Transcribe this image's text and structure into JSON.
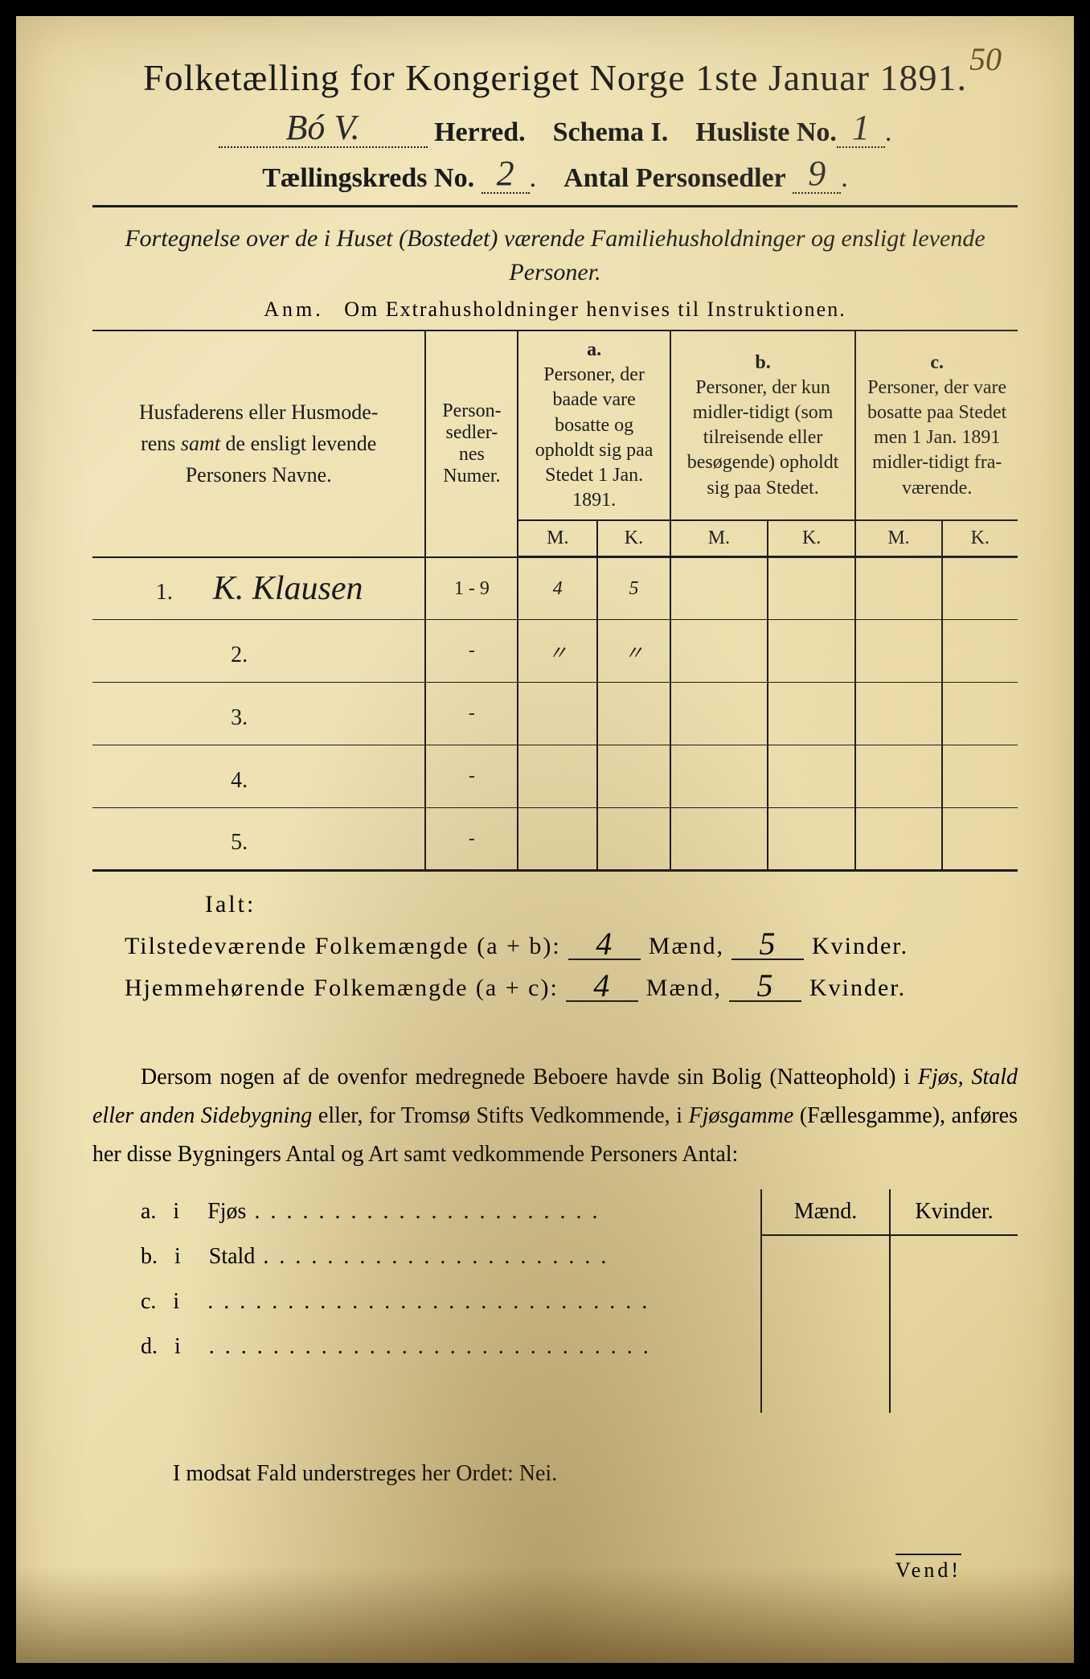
{
  "page_number_corner": "50",
  "title": "Folketælling for Kongeriget Norge 1ste Januar 1891.",
  "header": {
    "herred_value": "Bó V.",
    "herred_label": "Herred.",
    "schema_label": "Schema I.",
    "husliste_label": "Husliste No.",
    "husliste_value": "1",
    "tallingskreds_label": "Tællingskreds No.",
    "tallingskreds_value": "2",
    "antal_label": "Antal Personsedler",
    "antal_value": "9"
  },
  "description": "Fortegnelse over de i Huset (Bostedet) værende Familiehusholdninger og ensligt levende Personer.",
  "anm": {
    "prefix": "Anm.",
    "text": "Om Extrahusholdninger henvises til Instruktionen."
  },
  "table": {
    "col_names": "Husfaderens eller Husmoderens samt de ensligt levende Personers Navne.",
    "col_numer": "Person-sedler-nes Numer.",
    "col_a_label": "a.",
    "col_a": "Personer, der baade vare bosatte og opholdt sig paa Stedet 1 Jan. 1891.",
    "col_b_label": "b.",
    "col_b": "Personer, der kun midler-tidigt (som tilreisende eller besøgende) opholdt sig paa Stedet.",
    "col_c_label": "c.",
    "col_c": "Personer, der vare bosatte paa Stedet men 1 Jan. 1891 midler-tidigt fra-værende.",
    "M": "M.",
    "K": "K.",
    "rows": [
      {
        "num": "1.",
        "name": "K. Klausen",
        "numer": "1 - 9",
        "aM": "4",
        "aK": "5",
        "bM": "",
        "bK": "",
        "cM": "",
        "cK": ""
      },
      {
        "num": "2.",
        "name": "",
        "numer": "-",
        "aM": "〃",
        "aK": "〃",
        "bM": "",
        "bK": "",
        "cM": "",
        "cK": ""
      },
      {
        "num": "3.",
        "name": "",
        "numer": "-",
        "aM": "",
        "aK": "",
        "bM": "",
        "bK": "",
        "cM": "",
        "cK": ""
      },
      {
        "num": "4.",
        "name": "",
        "numer": "-",
        "aM": "",
        "aK": "",
        "bM": "",
        "bK": "",
        "cM": "",
        "cK": ""
      },
      {
        "num": "5.",
        "name": "",
        "numer": "-",
        "aM": "",
        "aK": "",
        "bM": "",
        "bK": "",
        "cM": "",
        "cK": ""
      }
    ]
  },
  "ialt_label": "Ialt:",
  "summary": {
    "line1_label": "Tilstedeværende Folkemængde (a + b):",
    "line1_m": "4",
    "maend": "Mænd,",
    "line1_k": "5",
    "kvinder": "Kvinder.",
    "line2_label": "Hjemmehørende Folkemængde (a + c):",
    "line2_m": "4",
    "line2_k": "5"
  },
  "paragraph": "Dersom nogen af de ovenfor medregnede Beboere havde sin Bolig (Natteophold) i Fjøs, Stald eller anden Sidebygning eller, for Tromsø Stifts Vedkommende, i Fjøsgamme (Fællesgamme), anføres her disse Bygningers Antal og Art samt vedkommende Personers Antal:",
  "mk": {
    "m": "Mænd.",
    "k": "Kvinder."
  },
  "side_items": [
    {
      "letter": "a.",
      "i": "i",
      "label": "Fjøs"
    },
    {
      "letter": "b.",
      "i": "i",
      "label": "Stald"
    },
    {
      "letter": "c.",
      "i": "i",
      "label": ""
    },
    {
      "letter": "d.",
      "i": "i",
      "label": ""
    }
  ],
  "nei_line": "I modsat Fald understreges her Ordet: Nei.",
  "vend": "Vend!",
  "colors": {
    "paper_light": "#f0e4b8",
    "paper_dark": "#d8c68a",
    "ink": "#1a1a1a",
    "handwriting": "#2a2a2a"
  }
}
